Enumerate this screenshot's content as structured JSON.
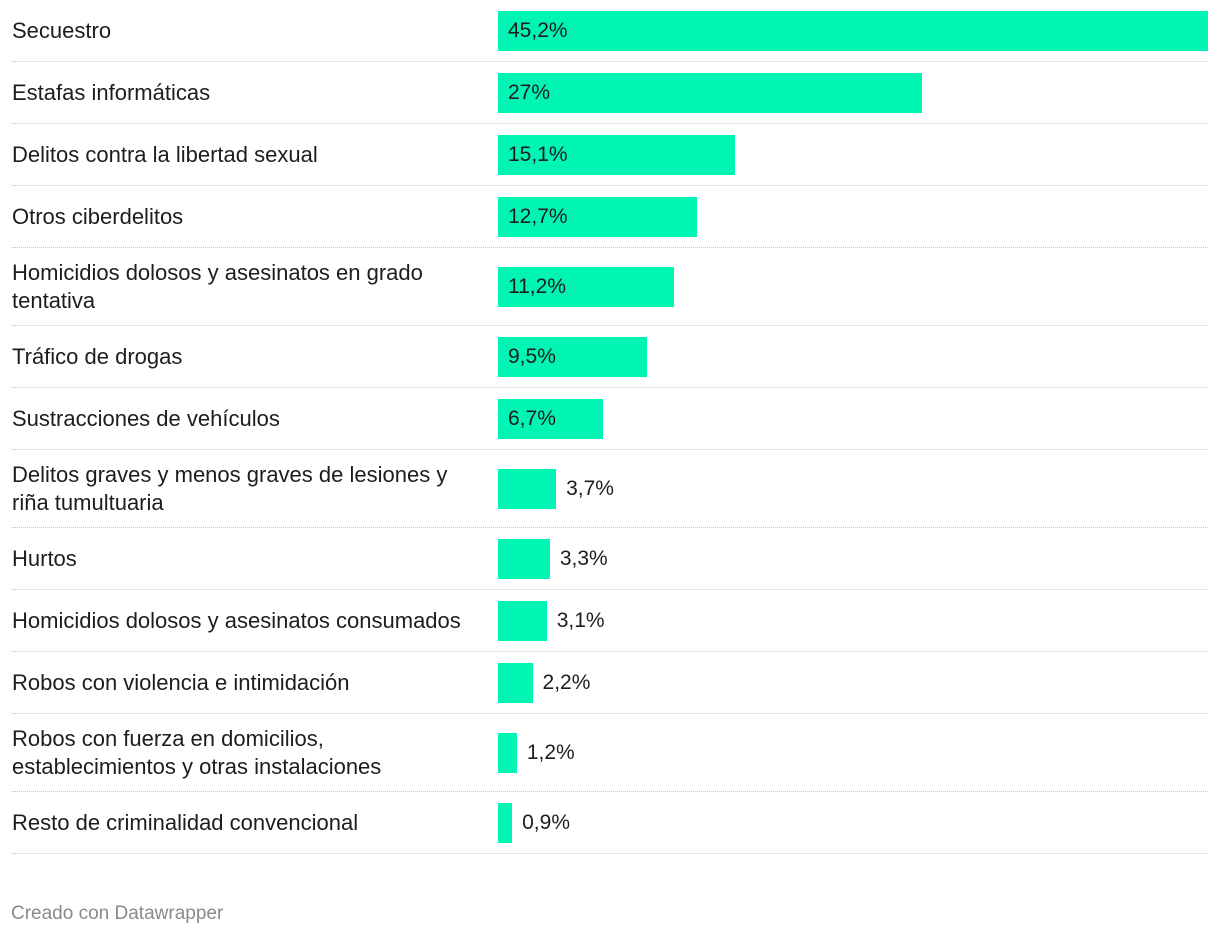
{
  "chart_data": {
    "type": "bar",
    "orientation": "horizontal",
    "categories": [
      "Secuestro",
      "Estafas informáticas",
      "Delitos contra la libertad sexual",
      "Otros ciberdelitos",
      "Homicidios dolosos y asesinatos en grado tentativa",
      "Tráfico de drogas",
      "Sustracciones de vehículos",
      "Delitos graves y menos graves de lesiones y riña tumultuaria",
      "Hurtos",
      "Homicidios dolosos y asesinatos consumados",
      "Robos con violencia e intimidación",
      "Robos con fuerza en domicilios, establecimientos y otras instalaciones",
      "Resto de criminalidad convencional"
    ],
    "values": [
      45.2,
      27,
      15.1,
      12.7,
      11.2,
      9.5,
      6.7,
      3.7,
      3.3,
      3.1,
      2.2,
      1.2,
      0.9
    ],
    "value_labels": [
      "45,2%",
      "27%",
      "15,1%",
      "12,7%",
      "11,2%",
      "9,5%",
      "6,7%",
      "3,7%",
      "3,3%",
      "3,1%",
      "2,2%",
      "1,2%",
      "0,9%"
    ],
    "xlim": [
      0,
      45.2
    ],
    "bar_color": "#00f5b4",
    "grid": false
  },
  "footer": {
    "credit": "Creado con Datawrapper"
  }
}
